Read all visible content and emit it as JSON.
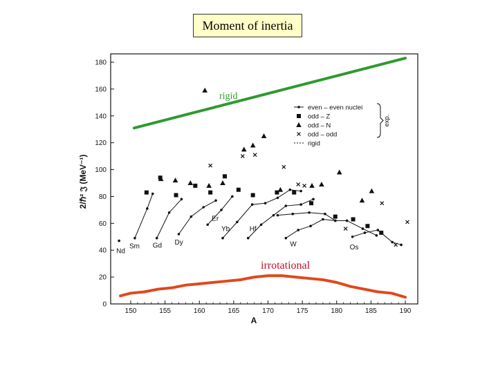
{
  "title": "Moment of inertia",
  "chart_data": {
    "type": "scatter",
    "xlabel": "A",
    "ylabel": "2/ℏ² 𝔍 (MeV⁻¹)",
    "xlim": [
      148,
      191
    ],
    "ylim": [
      0,
      180
    ],
    "xticks": [
      150,
      155,
      160,
      165,
      170,
      175,
      180,
      185,
      190
    ],
    "yticks": [
      0,
      20,
      40,
      60,
      80,
      100,
      120,
      140,
      160,
      180
    ],
    "legend": {
      "position": "top-right",
      "entries": [
        "even – even nuclei",
        "odd – Z",
        "odd – N",
        "odd – odd",
        "rigid"
      ],
      "bracket_label": "exp."
    },
    "series": [
      {
        "name": "rigid",
        "kind": "line",
        "color": "#2e9a2e",
        "x": [
          150.5,
          190
        ],
        "y": [
          131,
          183
        ]
      },
      {
        "name": "irrotational",
        "kind": "line",
        "color": "#e0481c",
        "x": [
          148.5,
          150,
          152,
          154,
          156,
          158,
          160,
          162,
          164,
          166,
          168,
          170,
          172,
          174,
          176,
          178,
          180,
          182,
          184,
          186,
          188,
          190
        ],
        "y": [
          6,
          8,
          9,
          11,
          12,
          14,
          15,
          16,
          17,
          18,
          20,
          21,
          21,
          20,
          19,
          18,
          16,
          13,
          11,
          9,
          8,
          5
        ]
      },
      {
        "name": "odd – N",
        "kind": "triangle",
        "x": [
          160.8,
          154.4,
          156.5,
          158.7,
          161.4,
          163.4,
          166.5,
          167.8,
          169.4,
          171.8,
          176.4,
          177.8,
          180.4,
          183.7,
          185.1
        ],
        "y": [
          159,
          93,
          92,
          90,
          88,
          90,
          115,
          118,
          125,
          85,
          88,
          89,
          98,
          77,
          84
        ]
      },
      {
        "name": "odd – Z",
        "kind": "square",
        "x": [
          152.3,
          154.3,
          156.6,
          159.4,
          161.6,
          163.7,
          165.7,
          167.8,
          171.3,
          173.8,
          176.3,
          179.8,
          182.4,
          184.5,
          186.5
        ],
        "y": [
          83,
          94,
          81,
          88,
          83,
          95,
          85,
          81,
          83,
          83,
          75,
          65,
          63,
          58,
          53
        ]
      },
      {
        "name": "odd – odd",
        "kind": "cross",
        "x": [
          161.6,
          166.3,
          168.1,
          172.3,
          174.4,
          175.3,
          181.3,
          186.6,
          188.6,
          190.3
        ],
        "y": [
          103,
          110,
          111,
          102,
          89,
          88,
          56,
          75,
          44,
          61
        ]
      },
      {
        "name": "Nd",
        "kind": "chain",
        "x": [
          148.3
        ],
        "y": [
          47
        ]
      },
      {
        "name": "Sm",
        "kind": "chain",
        "x": [
          150.6,
          152.4,
          153.2
        ],
        "y": [
          49,
          71,
          82
        ]
      },
      {
        "name": "Gd",
        "kind": "chain",
        "x": [
          153.8,
          155.6,
          157.4
        ],
        "y": [
          49,
          68,
          78
        ]
      },
      {
        "name": "Dy",
        "kind": "chain",
        "x": [
          157.0,
          158.8,
          160.6,
          162.4
        ],
        "y": [
          52,
          65,
          72,
          77
        ]
      },
      {
        "name": "Er",
        "kind": "chain",
        "x": [
          161.2,
          163.2,
          164.8
        ],
        "y": [
          59,
          70,
          80
        ]
      },
      {
        "name": "Yb",
        "kind": "chain",
        "x": [
          163.4,
          165.5,
          167.7,
          169.6,
          171.4,
          173.2,
          174.8
        ],
        "y": [
          49,
          61,
          74,
          75,
          79,
          85,
          84
        ]
      },
      {
        "name": "Hf",
        "kind": "chain",
        "x": [
          167.1,
          169.0,
          170.8,
          172.6,
          174.8,
          176.6
        ],
        "y": [
          49,
          59,
          66,
          73,
          74,
          78
        ]
      },
      {
        "name": "W",
        "kind": "chain",
        "x": [
          172.6,
          174.4,
          176.2,
          178.0,
          179.8
        ],
        "y": [
          49,
          55,
          58,
          63,
          62
        ]
      },
      {
        "name": "Os",
        "kind": "chain",
        "x": [
          182.3,
          184.1,
          186.0,
          188.1,
          189.4
        ],
        "y": [
          50,
          53,
          55,
          46,
          44
        ]
      },
      {
        "name": "upper-even",
        "kind": "chain",
        "x": [
          171.4,
          173.6,
          176.0,
          178.3,
          179.8,
          181.5,
          183.8,
          185.8
        ],
        "y": [
          66,
          67,
          68,
          67,
          62,
          62,
          56,
          51
        ]
      }
    ],
    "annotations": {
      "rigid_label": "rigid",
      "irrotational_label": "irrotational",
      "nucleus_labels": [
        "Nd",
        "Sm",
        "Gd",
        "Dy",
        "Er",
        "Yb",
        "Hf",
        "W",
        "Os"
      ]
    }
  }
}
